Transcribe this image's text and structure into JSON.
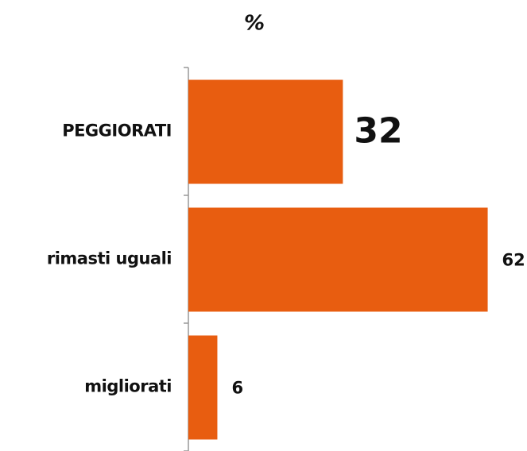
{
  "chart_data": {
    "type": "bar",
    "orientation": "horizontal",
    "title": "%",
    "categories": [
      "PEGGIORATI",
      "rimasti uguali",
      "migliorati"
    ],
    "values": [
      32,
      62,
      6
    ],
    "color": "#e85d10",
    "xlim": [
      0,
      68
    ]
  }
}
